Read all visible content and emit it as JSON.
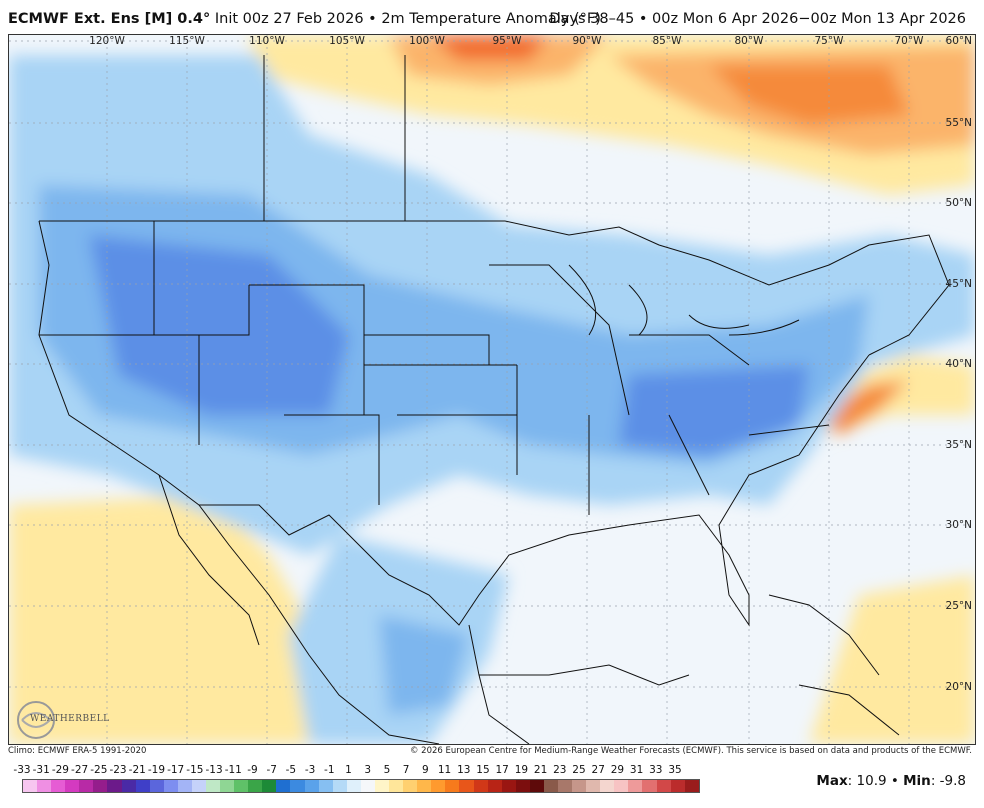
{
  "header": {
    "model": "ECMWF Ext. Ens [M] 0.4",
    "degree_symbol": "°",
    "init": "Init 00z 27 Feb 2026 • 2m Temperature Anomaly (°F)",
    "valid": "Days 38–45 • 00z Mon 6 Apr 2026−00z Mon 13 Apr 2026"
  },
  "longitudes": [
    "120°W",
    "115°W",
    "110°W",
    "105°W",
    "100°W",
    "95°W",
    "90°W",
    "85°W",
    "80°W",
    "75°W",
    "70°W"
  ],
  "latitudes": [
    "60°N",
    "55°N",
    "50°N",
    "45°N",
    "40°N",
    "35°N",
    "30°N",
    "25°N",
    "20°N"
  ],
  "footer": {
    "climo": "Climo: ECMWF ERA-5 1991-2020",
    "copyright": "© 2026 European Centre for Medium-Range Weather Forecasts (ECMWF). This service is based on data and products of the ECMWF."
  },
  "colorbar": {
    "labels": [
      "-33",
      "-31",
      "-29",
      "-27",
      "-25",
      "-23",
      "-21",
      "-19",
      "-17",
      "-15",
      "-13",
      "-11",
      "-9",
      "-7",
      "-5",
      "-3",
      "-1",
      "1",
      "3",
      "5",
      "7",
      "9",
      "11",
      "13",
      "15",
      "17",
      "19",
      "21",
      "23",
      "25",
      "27",
      "29",
      "31",
      "33",
      "35"
    ],
    "colors": [
      "#f7c6f0",
      "#ef8fe3",
      "#e65cd4",
      "#d43ac0",
      "#b82aa6",
      "#951d8c",
      "#6c1a8a",
      "#4a2aa6",
      "#3f3fc8",
      "#5b66dc",
      "#7d8ef0",
      "#a3b4f6",
      "#c5d2fa",
      "#bfe8c6",
      "#8fd694",
      "#5fc168",
      "#3aa548",
      "#1d8a37",
      "#1f6fd1",
      "#3c8ae0",
      "#5aa2ea",
      "#86bff2",
      "#b4daf7",
      "#dff0fb",
      "#f5f7fa",
      "#fff5c8",
      "#ffe69a",
      "#ffd070",
      "#ffb74a",
      "#ff9a2e",
      "#f77a1c",
      "#e8561a",
      "#d13818",
      "#b82416",
      "#9a1612",
      "#7c0e0e",
      "#5e0a0a",
      "#8a5a4a",
      "#a8786a",
      "#c6968a",
      "#e0b8ad",
      "#f4d6cf",
      "#f7c3c3",
      "#ee9a9a",
      "#e27070",
      "#d24848",
      "#bb2c2c",
      "#9a1c1c"
    ]
  },
  "stats": {
    "max_label": "Max",
    "max_value": ": 10.9",
    "sep": " • ",
    "min_label": "Min",
    "min_value": ": -9.8"
  },
  "logo": {
    "text": "WEATHERBELL"
  },
  "colors": {
    "cold": "#5b8fe6",
    "cool": "#a9d4f5",
    "neutral": "#f4f7fb",
    "warm": "#ffe9a0",
    "hot": "#f7923a"
  }
}
